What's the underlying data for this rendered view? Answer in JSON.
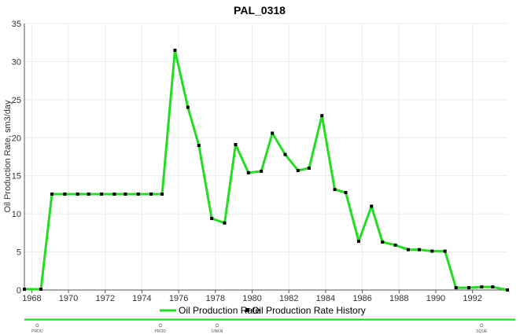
{
  "chart_data": {
    "type": "line",
    "title": "PAL_0318",
    "xlabel": "",
    "ylabel": "Oil Production Rate, sm3/day",
    "xlim": [
      1967.6,
      1993.9
    ],
    "ylim": [
      0,
      35
    ],
    "yticks": [
      0,
      5,
      10,
      15,
      20,
      25,
      30,
      35
    ],
    "xticks": [
      1968,
      1970,
      1972,
      1974,
      1976,
      1978,
      1980,
      1982,
      1984,
      1986,
      1988,
      1990,
      1992
    ],
    "xtick_labels": [
      "1968",
      "1970",
      "1972",
      "1974",
      "1976",
      "1978",
      "1980",
      "1982",
      "1984",
      "1986",
      "1988",
      "1990",
      "1992"
    ],
    "grid": true,
    "legend_position": "bottom-center",
    "series": [
      {
        "name": "Oil Production Rate",
        "color": "#22dd22",
        "x": [
          1967.6,
          1968.5,
          1969.1,
          1969.8,
          1970.5,
          1971.1,
          1971.8,
          1972.5,
          1973.1,
          1973.8,
          1974.5,
          1975.1,
          1975.8,
          1976.5,
          1977.1,
          1977.8,
          1978.5,
          1979.1,
          1979.8,
          1980.5,
          1981.1,
          1981.8,
          1982.5,
          1983.1,
          1983.8,
          1984.5,
          1985.1,
          1985.8,
          1986.5,
          1987.1,
          1987.8,
          1988.5,
          1989.1,
          1989.8,
          1990.5,
          1991.1,
          1991.8,
          1992.5,
          1993.1,
          1993.9
        ],
        "y": [
          0.1,
          0.1,
          12.6,
          12.6,
          12.6,
          12.6,
          12.6,
          12.6,
          12.6,
          12.6,
          12.6,
          12.6,
          31.5,
          24.0,
          19.0,
          9.4,
          8.8,
          19.1,
          15.4,
          15.6,
          20.6,
          17.8,
          15.7,
          16.0,
          22.9,
          13.2,
          12.8,
          6.4,
          11.0,
          6.3,
          5.9,
          5.3,
          5.3,
          5.1,
          5.1,
          0.3,
          0.3,
          0.4,
          0.4,
          0.0
        ]
      },
      {
        "name": "Oil Production Rate History",
        "color": "#000000",
        "marker": "square",
        "x": [
          1967.6,
          1968.5,
          1969.1,
          1969.8,
          1970.5,
          1971.1,
          1971.8,
          1972.5,
          1973.1,
          1973.8,
          1974.5,
          1975.1,
          1975.8,
          1976.5,
          1977.1,
          1977.8,
          1978.5,
          1979.1,
          1979.8,
          1980.5,
          1981.1,
          1981.8,
          1982.5,
          1983.1,
          1983.8,
          1984.5,
          1985.1,
          1985.8,
          1986.5,
          1987.1,
          1987.8,
          1988.5,
          1989.1,
          1989.8,
          1990.5,
          1991.1,
          1991.8,
          1992.5,
          1993.1,
          1993.9
        ],
        "y": [
          0.1,
          0.1,
          12.6,
          12.6,
          12.6,
          12.6,
          12.6,
          12.6,
          12.6,
          12.6,
          12.6,
          12.6,
          31.5,
          24.0,
          19.0,
          9.4,
          8.8,
          19.1,
          15.4,
          15.6,
          20.6,
          17.8,
          15.7,
          16.0,
          22.9,
          13.2,
          12.8,
          6.4,
          11.0,
          6.3,
          5.9,
          5.3,
          5.3,
          5.1,
          5.1,
          0.3,
          0.3,
          0.4,
          0.4,
          0.0
        ]
      }
    ],
    "events": [
      {
        "x": 1968.3,
        "label": "PROD"
      },
      {
        "x": 1975.0,
        "label": "PROD"
      },
      {
        "x": 1978.1,
        "label": "UNKN"
      },
      {
        "x": 1992.5,
        "label": "SQUE"
      }
    ]
  }
}
